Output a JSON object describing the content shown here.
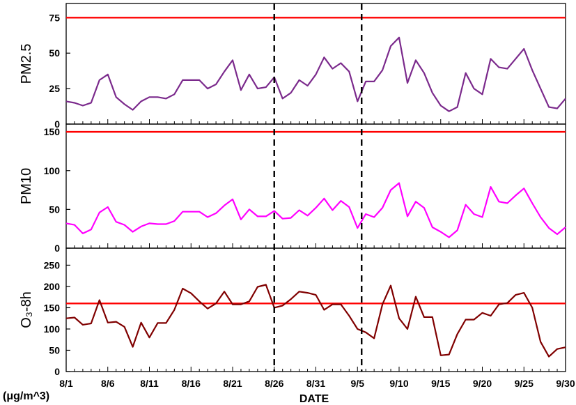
{
  "chart_data": {
    "type": "line",
    "xlabel": "DATE",
    "unit_label": "(μg/m^3)",
    "x": [
      "8/1",
      "8/2",
      "8/3",
      "8/4",
      "8/5",
      "8/6",
      "8/7",
      "8/8",
      "8/9",
      "8/10",
      "8/11",
      "8/12",
      "8/13",
      "8/14",
      "8/15",
      "8/16",
      "8/17",
      "8/18",
      "8/19",
      "8/20",
      "8/21",
      "8/22",
      "8/23",
      "8/24",
      "8/25",
      "8/26",
      "8/27",
      "8/28",
      "8/29",
      "8/30",
      "8/31",
      "9/1",
      "9/2",
      "9/3",
      "9/4",
      "9/5",
      "9/6",
      "9/7",
      "9/8",
      "9/9",
      "9/10",
      "9/11",
      "9/12",
      "9/13",
      "9/14",
      "9/15",
      "9/16",
      "9/17",
      "9/18",
      "9/19",
      "9/20",
      "9/21",
      "9/22",
      "9/23",
      "9/24",
      "9/25",
      "9/26",
      "9/27",
      "9/28",
      "9/29",
      "9/30"
    ],
    "x_tick_labels": [
      "8/1",
      "8/6",
      "8/11",
      "8/16",
      "8/21",
      "8/26",
      "8/31",
      "9/5",
      "9/10",
      "9/15",
      "9/20",
      "9/25",
      "9/30"
    ],
    "x_tick_every": 5,
    "vertical_markers": {
      "style": "dashed",
      "color": "#000000",
      "positions": [
        25,
        35.5
      ]
    },
    "panels": [
      {
        "ylabel": "PM2.5",
        "ylim": [
          0,
          85
        ],
        "yticks": [
          0,
          25,
          50,
          75
        ],
        "threshold": 75,
        "threshold_color": "#ff0000",
        "series": [
          {
            "color": "#7b2a8c",
            "values": [
              16,
              15,
              13,
              15,
              31,
              35,
              19,
              14,
              10,
              16,
              19,
              19,
              18,
              21,
              31,
              31,
              31,
              25,
              28,
              37,
              45,
              24,
              35,
              25,
              26,
              33,
              18,
              22,
              31,
              27,
              35,
              47,
              39,
              43,
              37,
              16,
              30,
              30,
              38,
              55,
              61,
              29,
              45,
              36,
              22,
              13,
              9,
              12,
              36,
              25,
              21,
              46,
              40,
              39,
              46,
              53,
              38,
              25,
              12,
              11,
              18
            ]
          }
        ]
      },
      {
        "ylabel": "PM10",
        "ylim": [
          0,
          160
        ],
        "yticks": [
          0,
          50,
          100,
          150
        ],
        "threshold": 150,
        "threshold_color": "#ff0000",
        "series": [
          {
            "color": "#ff00ff",
            "values": [
              32,
              30,
              19,
              24,
              46,
              53,
              34,
              30,
              21,
              28,
              32,
              31,
              31,
              35,
              47,
              47,
              47,
              40,
              45,
              55,
              63,
              37,
              50,
              41,
              41,
              48,
              38,
              39,
              49,
              42,
              52,
              64,
              49,
              61,
              53,
              26,
              44,
              40,
              52,
              75,
              84,
              41,
              60,
              52,
              27,
              21,
              14,
              23,
              56,
              44,
              40,
              79,
              60,
              58,
              68,
              77,
              58,
              40,
              26,
              18,
              27
            ]
          }
        ]
      },
      {
        "ylabel": "O₃-8h",
        "ylim": [
          0,
          290
        ],
        "yticks": [
          0,
          50,
          100,
          150,
          200,
          250
        ],
        "threshold": 160,
        "threshold_color": "#ff0000",
        "series": [
          {
            "color": "#800000",
            "values": [
              125,
              127,
              110,
              113,
              168,
              115,
              117,
              105,
              58,
              115,
              80,
              114,
              114,
              145,
              195,
              184,
              165,
              148,
              160,
              188,
              158,
              158,
              165,
              199,
              204,
              150,
              155,
              170,
              188,
              185,
              180,
              145,
              158,
              158,
              131,
              100,
              92,
              78,
              158,
              202,
              125,
              100,
              176,
              128,
              128,
              38,
              40,
              88,
              122,
              122,
              138,
              131,
              158,
              161,
              180,
              185,
              150,
              70,
              35,
              53,
              57
            ]
          }
        ]
      }
    ]
  }
}
